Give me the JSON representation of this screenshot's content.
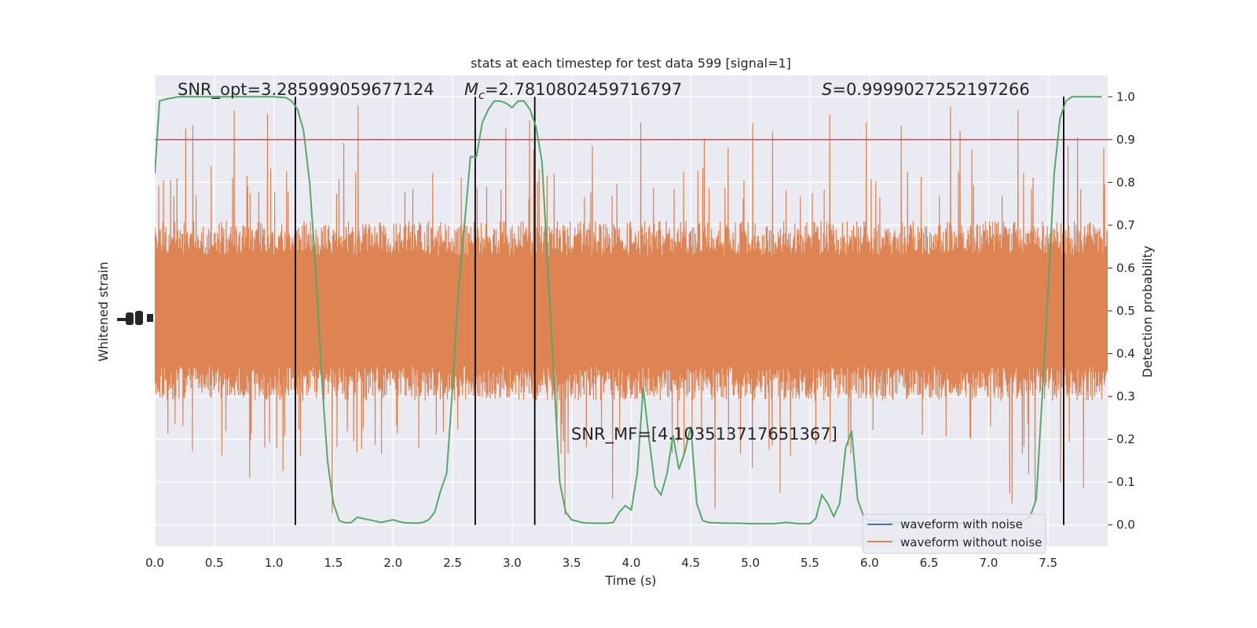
{
  "chart_data": {
    "type": "line",
    "title": "stats at each timestep for test data 599 [signal=1]",
    "xlabel": "Time (s)",
    "ylabel_left": "Whitened strain",
    "ylabel_right": "Detection probability",
    "xlim": [
      0,
      8
    ],
    "ylim_right": [
      -0.05,
      1.05
    ],
    "x_ticks": [
      "0.0",
      "0.5",
      "1.0",
      "1.5",
      "2.0",
      "2.5",
      "3.0",
      "3.5",
      "4.0",
      "4.5",
      "5.0",
      "5.5",
      "6.0",
      "6.5",
      "7.0",
      "7.5"
    ],
    "y_ticks_right": [
      "0.0",
      "0.1",
      "0.2",
      "0.3",
      "0.4",
      "0.5",
      "0.6",
      "0.7",
      "0.8",
      "0.9",
      "1.0"
    ],
    "grid": true,
    "legend_position": "lower-right",
    "annotations": {
      "snr_opt": "SNR_opt=3.285999059677124",
      "mc_symbol": "M",
      "mc_sub": "c",
      "mc_value": "=2.7810802459716797",
      "s_symbol": "S",
      "s_value": "=0.9999027252197266",
      "snr_mf": "SNR_MF=[4.103513717651367]"
    },
    "threshold": 0.9,
    "vertical_lines": [
      1.18,
      2.69,
      3.19,
      7.63
    ],
    "series": [
      {
        "name": "waveform with noise",
        "color": "#4c72b0",
        "note_center": 0.48
      },
      {
        "name": "waveform without noise",
        "color": "#dd8452",
        "band": [
          0.3,
          0.7
        ]
      },
      {
        "color": "#55a868",
        "x": [
          0.0,
          0.04,
          0.1,
          0.2,
          0.4,
          0.6,
          0.8,
          1.0,
          1.1,
          1.15,
          1.2,
          1.25,
          1.3,
          1.35,
          1.4,
          1.45,
          1.5,
          1.55,
          1.6,
          1.65,
          1.7,
          1.8,
          1.9,
          2.0,
          2.05,
          2.1,
          2.2,
          2.25,
          2.3,
          2.35,
          2.4,
          2.45,
          2.5,
          2.55,
          2.6,
          2.65,
          2.7,
          2.75,
          2.8,
          2.85,
          2.9,
          2.95,
          3.0,
          3.05,
          3.1,
          3.15,
          3.2,
          3.25,
          3.3,
          3.35,
          3.4,
          3.45,
          3.5,
          3.6,
          3.7,
          3.8,
          3.85,
          3.9,
          3.95,
          4.0,
          4.05,
          4.1,
          4.15,
          4.2,
          4.25,
          4.3,
          4.35,
          4.4,
          4.45,
          4.5,
          4.55,
          4.6,
          4.65,
          4.7,
          4.8,
          4.9,
          5.0,
          5.1,
          5.2,
          5.3,
          5.4,
          5.5,
          5.55,
          5.6,
          5.65,
          5.7,
          5.75,
          5.8,
          5.85,
          5.9,
          5.95,
          6.0,
          6.1,
          6.2,
          6.3,
          6.4,
          6.5,
          6.6,
          6.7,
          6.8,
          6.9,
          7.0,
          7.1,
          7.2,
          7.3,
          7.35,
          7.4,
          7.45,
          7.5,
          7.55,
          7.6,
          7.65,
          7.7,
          7.75,
          7.8,
          7.85,
          7.9,
          7.95
        ],
        "y": [
          0.82,
          0.99,
          0.995,
          1.0,
          1.0,
          1.0,
          1.0,
          1.0,
          0.998,
          0.99,
          0.97,
          0.92,
          0.8,
          0.6,
          0.35,
          0.15,
          0.05,
          0.01,
          0.005,
          0.006,
          0.018,
          0.012,
          0.006,
          0.012,
          0.008,
          0.005,
          0.004,
          0.006,
          0.012,
          0.03,
          0.08,
          0.12,
          0.32,
          0.55,
          0.7,
          0.86,
          0.86,
          0.94,
          0.97,
          0.99,
          0.99,
          0.985,
          0.975,
          0.99,
          0.99,
          0.97,
          0.93,
          0.85,
          0.6,
          0.35,
          0.1,
          0.03,
          0.012,
          0.005,
          0.004,
          0.004,
          0.006,
          0.03,
          0.045,
          0.035,
          0.12,
          0.32,
          0.2,
          0.09,
          0.07,
          0.12,
          0.21,
          0.13,
          0.17,
          0.23,
          0.05,
          0.01,
          0.006,
          0.005,
          0.004,
          0.004,
          0.003,
          0.003,
          0.003,
          0.006,
          0.003,
          0.003,
          0.015,
          0.07,
          0.05,
          0.02,
          0.05,
          0.18,
          0.22,
          0.06,
          0.02,
          0.01,
          0.01,
          0.005,
          0.006,
          0.005,
          0.004,
          0.004,
          0.004,
          0.004,
          0.004,
          0.004,
          0.004,
          0.006,
          0.01,
          0.02,
          0.06,
          0.3,
          0.55,
          0.82,
          0.95,
          0.99,
          1.0,
          1.0,
          1.0,
          1.0,
          1.0,
          1.0
        ]
      }
    ]
  },
  "legend": {
    "item1": "waveform with noise",
    "item2": "waveform without noise"
  },
  "colors": {
    "background": "#eaeaf2",
    "grid": "#ffffff",
    "noise": "#4c72b0",
    "signal": "#dd8452",
    "probability": "#55a868",
    "threshold": "#c44e52",
    "vlines": "#000000"
  }
}
